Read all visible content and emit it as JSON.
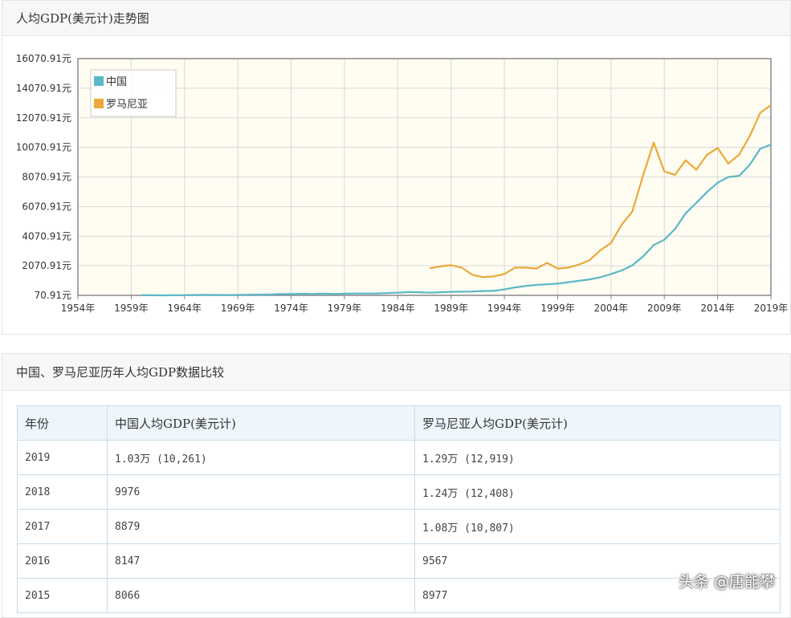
{
  "chart_panel": {
    "title": "人均GDP(美元计)走势图"
  },
  "table_panel": {
    "title": "中国、罗马尼亚历年人均GDP数据比较"
  },
  "table": {
    "headers": [
      "年份",
      "中国人均GDP(美元计)",
      "罗马尼亚人均GDP(美元计)"
    ],
    "rows": [
      [
        "2019",
        "1.03万 (10,261)",
        "1.29万 (12,919)"
      ],
      [
        "2018",
        "9976",
        "1.24万 (12,408)"
      ],
      [
        "2017",
        "8879",
        "1.08万 (10,807)"
      ],
      [
        "2016",
        "8147",
        "9567"
      ],
      [
        "2015",
        "8066",
        "8977"
      ]
    ]
  },
  "watermark": "头条 @唐能攀",
  "chart_data": {
    "type": "line",
    "title": "人均GDP(美元计)走势图",
    "xlim": [
      1954,
      2019
    ],
    "ylim": [
      70.91,
      16070.91
    ],
    "x_ticks": [
      "1954年",
      "1959年",
      "1964年",
      "1969年",
      "1974年",
      "1979年",
      "1984年",
      "1989年",
      "1994年",
      "1999年",
      "2004年",
      "2009年",
      "2014年",
      "2019年"
    ],
    "y_ticks": [
      "70.91元",
      "2070.91元",
      "4070.91元",
      "6070.91元",
      "8070.91元",
      "10070.91元",
      "12070.91元",
      "14070.91元",
      "16070.91元"
    ],
    "y_tick_values": [
      70.91,
      2070.91,
      4070.91,
      6070.91,
      8070.91,
      10070.91,
      12070.91,
      14070.91,
      16070.91
    ],
    "legend_position": "top-left",
    "grid": true,
    "series": [
      {
        "name": "中国",
        "color": "#5bb8c8",
        "x": [
          1960,
          1961,
          1962,
          1963,
          1964,
          1965,
          1966,
          1967,
          1968,
          1969,
          1970,
          1971,
          1972,
          1973,
          1974,
          1975,
          1976,
          1977,
          1978,
          1979,
          1980,
          1981,
          1982,
          1983,
          1984,
          1985,
          1986,
          1987,
          1988,
          1989,
          1990,
          1991,
          1992,
          1993,
          1994,
          1995,
          1996,
          1997,
          1998,
          1999,
          2000,
          2001,
          2002,
          2003,
          2004,
          2005,
          2006,
          2007,
          2008,
          2009,
          2010,
          2011,
          2012,
          2013,
          2014,
          2015,
          2016,
          2017,
          2018,
          2019
        ],
        "values": [
          90,
          76,
          70,
          74,
          85,
          98,
          104,
          97,
          91,
          100,
          113,
          119,
          132,
          157,
          160,
          178,
          165,
          185,
          156,
          184,
          195,
          197,
          203,
          225,
          251,
          294,
          281,
          252,
          284,
          311,
          318,
          333,
          366,
          377,
          473,
          610,
          703,
          774,
          821,
          865,
          959,
          1053,
          1149,
          1289,
          1509,
          1753,
          2099,
          2694,
          3468,
          3832,
          4550,
          5618,
          6317,
          7051,
          7679,
          8066,
          8147,
          8879,
          9976,
          10261
        ]
      },
      {
        "name": "罗马尼亚",
        "color": "#eaa93a",
        "x": [
          1987,
          1988,
          1989,
          1990,
          1991,
          1992,
          1993,
          1994,
          1995,
          1996,
          1997,
          1998,
          1999,
          2000,
          2001,
          2002,
          2003,
          2004,
          2005,
          2006,
          2007,
          2008,
          2009,
          2010,
          2011,
          2012,
          2013,
          2014,
          2015,
          2016,
          2017,
          2018,
          2019
        ],
        "values": [
          1900,
          2030,
          2110,
          1950,
          1460,
          1300,
          1350,
          1520,
          1950,
          1950,
          1880,
          2270,
          1880,
          1950,
          2150,
          2450,
          3120,
          3600,
          4850,
          5740,
          8150,
          10400,
          8450,
          8210,
          9200,
          8560,
          9570,
          10030,
          8977,
          9567,
          10807,
          12408,
          12919
        ]
      }
    ]
  }
}
